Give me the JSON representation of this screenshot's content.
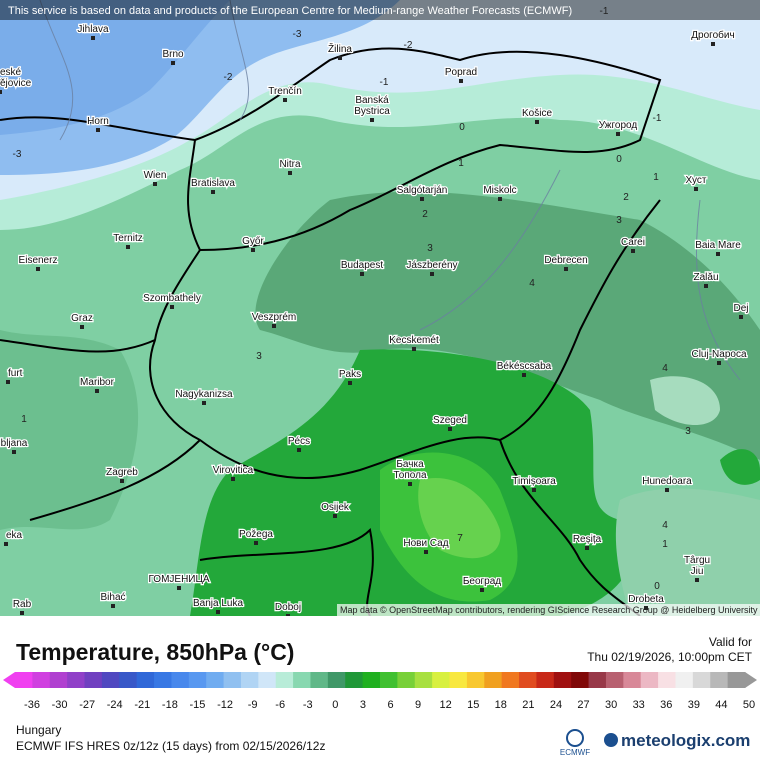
{
  "notice": "This service is based on data and products of the European Centre for Medium-range Weather Forecasts (ECMWF)",
  "attribution": "Map data © OpenStreetMap contributors, rendering GIScience Research Group @ Heidelberg University",
  "cities": [
    "Jihlava",
    "Brno",
    "eské",
    "ějovice",
    "Horn",
    "Wien",
    "Bratislava",
    "Ternitz",
    "Eisenerz",
    "Győr",
    "Szombathely",
    "Graz",
    "Veszprém",
    "Maribor",
    "furt",
    "Nagykanizsa",
    "bljana",
    "Zagreb",
    "Virovitica",
    "Pécs",
    "Osijek",
    "Požega",
    "eka",
    "ГОМЈЕНИЦА",
    "Bihać",
    "Rab",
    "Banja Luka",
    "Doboj",
    "Paks",
    "Kecskemét",
    "Budapest",
    "Jászberény",
    "Szeged",
    "Бачка",
    "Топола",
    "Нови Сад",
    "Београд",
    "Salgótarján",
    "Miskolc",
    "Košice",
    "Poprad",
    "Žilina",
    "Trenčín",
    "Banská",
    "Bystrica",
    "Nitra",
    "Békéscsaba",
    "Debrecen",
    "Timișoara",
    "Reșița",
    "Carei",
    "Baia Mare",
    "Zalău",
    "Cluj-Napoca",
    "Hunedoara",
    "Târgu",
    "Jiu",
    "Drobeta",
    "Ужгород",
    "Хуст",
    "Дрогобич",
    "Dej"
  ],
  "contour_labels": [
    -3,
    -2,
    -1,
    -2,
    -1,
    -3,
    -1,
    0,
    0,
    1,
    1,
    2,
    2,
    3,
    3,
    4,
    3,
    4,
    3,
    1,
    4,
    1,
    0,
    7
  ],
  "title": "Temperature, 850hPa (°C)",
  "valid_label": "Valid for",
  "valid_time": "Thu 02/19/2026, 10:00pm CET",
  "legend": {
    "ticks": [
      -36,
      -30,
      -27,
      -24,
      -21,
      -18,
      -15,
      -12,
      -9,
      -6,
      -3,
      0,
      3,
      6,
      9,
      12,
      15,
      18,
      21,
      24,
      27,
      30,
      33,
      36,
      39,
      44,
      50
    ],
    "colors": [
      "#f040f0",
      "#d040e0",
      "#b040d0",
      "#9040c8",
      "#7040c0",
      "#5048c0",
      "#3858c8",
      "#3068d8",
      "#3878e4",
      "#4888ec",
      "#5898f0",
      "#70acf0",
      "#90c0f0",
      "#b0d4f4",
      "#d0e6f8",
      "#b8ecd8",
      "#88d8b0",
      "#60b888",
      "#409868",
      "#209838",
      "#20b020",
      "#40c030",
      "#78d038",
      "#a8e040",
      "#d8f040",
      "#f8e840",
      "#f8c830",
      "#f0a020",
      "#f07820",
      "#e04c20",
      "#c82818",
      "#a01010",
      "#800808",
      "#983848",
      "#b86070",
      "#d88898",
      "#ecb8c4",
      "#f8e0e4",
      "#f0f0f0",
      "#d8d8d8",
      "#b8b8b8",
      "#989898"
    ]
  },
  "region": "Hungary",
  "model": "ECMWF IFS HRES 0z/12z (15 days) from 02/15/2026/12z",
  "logo_ecmwf": "ECMWF",
  "logo_site": "meteologix.com"
}
